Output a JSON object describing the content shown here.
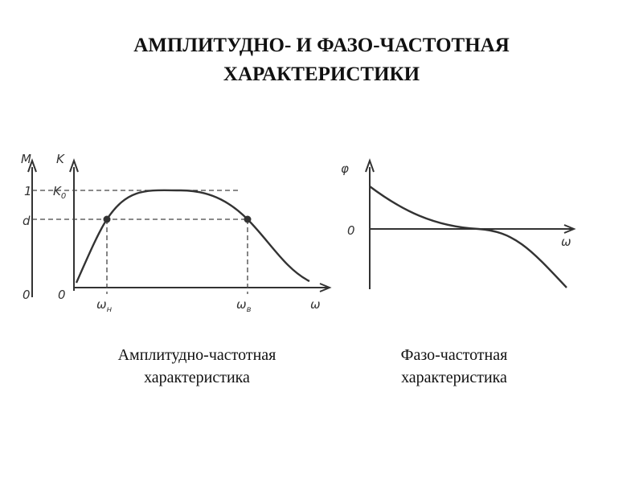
{
  "title": [
    "АМПЛИТУДНО- И ФАЗО-ЧАСТОТНАЯ",
    "ХАРАКТЕРИСТИКИ"
  ],
  "amplitude": {
    "m_axis": "M",
    "k_axis": "K",
    "m_one": "1",
    "k0": {
      "base": "K",
      "sub": "0"
    },
    "m_d": "d",
    "m_zero": "0",
    "k_zero": "0",
    "omega_low": {
      "base": "ω",
      "sub": "н"
    },
    "omega_high": {
      "base": "ω",
      "sub": "в"
    },
    "omega_axis": "ω"
  },
  "phase": {
    "phi_axis": "φ",
    "zero": "0",
    "omega_axis": "ω"
  },
  "captions": [
    [
      "Амплитудно-частотная",
      "характеристика"
    ],
    [
      "Фазо-частотная",
      "характеристика"
    ]
  ]
}
